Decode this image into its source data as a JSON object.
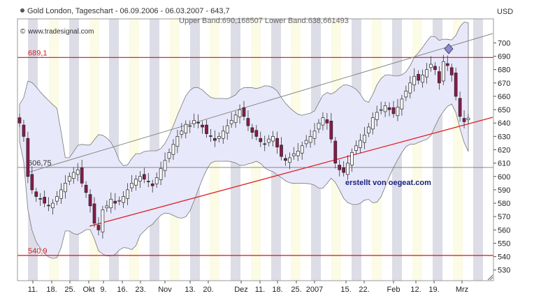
{
  "header": {
    "title": "Gold London, Tageschart - 06.09.2006 - 06.03.2007 - 643,7",
    "subtitle": "Upper Band:690,168507 Lower Band:638,661493",
    "source": "www.tradesignal.com",
    "currency": "USD"
  },
  "credit": "erstellt von oegeat.com",
  "colors": {
    "candle_up": "#ffffff",
    "candle_down": "#8b1a4a",
    "band": "#e8e8fb",
    "stripe_gray": "#dcdde6",
    "stripe_yellow": "#fbfbe6",
    "hline_red": "#dd1111",
    "trend_red": "#e02020",
    "trend_gray": "#888888"
  },
  "chart_data": {
    "type": "candlestick",
    "title": "Gold London, Tageschart - 06.09.2006 - 06.03.2007 - 643,7",
    "ylabel": "USD",
    "ylim": [
      522,
      718
    ],
    "yticks": [
      530,
      540,
      550,
      560,
      570,
      580,
      590,
      600,
      610,
      620,
      630,
      640,
      650,
      660,
      670,
      680,
      690,
      700
    ],
    "xticks": [
      "11.",
      "18.",
      "25.",
      "Okt",
      "9.",
      "16.",
      "23.",
      "Nov",
      "13.",
      "20.",
      "Dez",
      "11.",
      "18.",
      "25.",
      "2007",
      "15.",
      "22.",
      "Feb",
      "12.",
      "19.",
      "Mrz"
    ],
    "levels": [
      {
        "label": "689,1",
        "value": 689.1
      },
      {
        "label": "540,9",
        "value": 540.9
      },
      {
        "label": "606,75",
        "value": 606.75
      }
    ],
    "closes": [
      640,
      630,
      600,
      590,
      585,
      583,
      580,
      578,
      580,
      585,
      590,
      595,
      600,
      603,
      605,
      595,
      588,
      578,
      565,
      560,
      575,
      578,
      583,
      580,
      582,
      585,
      590,
      595,
      598,
      600,
      598,
      596,
      593,
      599,
      606,
      612,
      618,
      624,
      630,
      634,
      639,
      638,
      642,
      640,
      637,
      632,
      630,
      627,
      630,
      634,
      638,
      642,
      646,
      650,
      645,
      638,
      633,
      630,
      626,
      624,
      628,
      630,
      622,
      615,
      612,
      614,
      617,
      619,
      623,
      627,
      630,
      634,
      640,
      644,
      640,
      628,
      610,
      605,
      603,
      610,
      618,
      623,
      627,
      631,
      637,
      644,
      648,
      650,
      653,
      650,
      647,
      652,
      658,
      664,
      670,
      675,
      672,
      676,
      680,
      684,
      680,
      670,
      686,
      683,
      676,
      660,
      645,
      641,
      643.7
    ]
  }
}
